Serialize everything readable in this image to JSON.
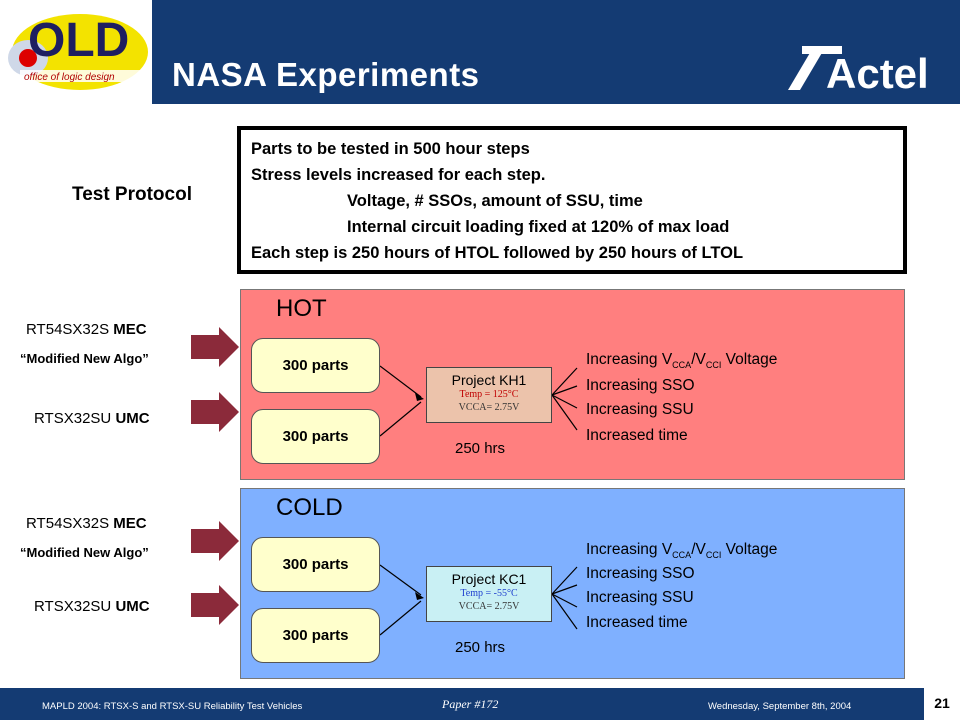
{
  "header": {
    "title": "NASA Experiments",
    "logo_text": "OLD",
    "logo_sub": "office of logic design",
    "brand": "Actel"
  },
  "protocol": {
    "label": "Test Protocol",
    "lines": [
      "Parts to be tested in 500 hour steps",
      "Stress levels increased for each step.",
      "Voltage, # SSOs, amount of SSU, time",
      "Internal circuit loading fixed at 120% of max load",
      "Each step is 250 hours of HTOL followed by 250 hours of LTOL"
    ]
  },
  "hot": {
    "title": "HOT",
    "mec_label": "RT54SX32S",
    "mec_tag": "MEC",
    "algo": "“Modified New Algo”",
    "umc_label": "RTSX32SU",
    "umc_tag": "UMC",
    "parts_top": "300 parts",
    "parts_bottom": "300 parts",
    "project": "Project KH1",
    "temp": "Temp = 125°C",
    "vcca": "VCCA= 2.75V",
    "hrs": "250 hrs",
    "inc_voltage_pre": "Increasing V",
    "inc_voltage_sub1": "CCA",
    "inc_voltage_mid": "/V",
    "inc_voltage_sub2": "CCI",
    "inc_voltage_post": " Voltage",
    "inc_sso": "Increasing SSO",
    "inc_ssu": "Increasing SSU",
    "inc_time": "Increased time"
  },
  "cold": {
    "title": "COLD",
    "mec_label": "RT54SX32S",
    "mec_tag": "MEC",
    "algo": "“Modified New Algo”",
    "umc_label": "RTSX32SU",
    "umc_tag": "UMC",
    "parts_top": "300 parts",
    "parts_bottom": "300 parts",
    "project": "Project KC1",
    "temp": "Temp = -55°C",
    "vcca": "VCCA= 2.75V",
    "hrs": "250 hrs",
    "inc_voltage_pre": "Increasing V",
    "inc_voltage_sub1": "CCA",
    "inc_voltage_mid": "/V",
    "inc_voltage_sub2": "CCI",
    "inc_voltage_post": " Voltage",
    "inc_sso": "Increasing SSO",
    "inc_ssu": "Increasing SSU",
    "inc_time": "Increased time"
  },
  "footer": {
    "left": "MAPLD 2004: RTSX-S and RTSX-SU Reliability Test Vehicles",
    "center": "Paper #172",
    "right": "Wednesday, September 8th, 2004",
    "page": "21"
  },
  "colors": {
    "header_bg": "#143b73",
    "hot_bg": "#ff7f7f",
    "cold_bg": "#7fb0ff",
    "arrow": "#8b2a3a",
    "parts_fill": "#ffffcc"
  }
}
